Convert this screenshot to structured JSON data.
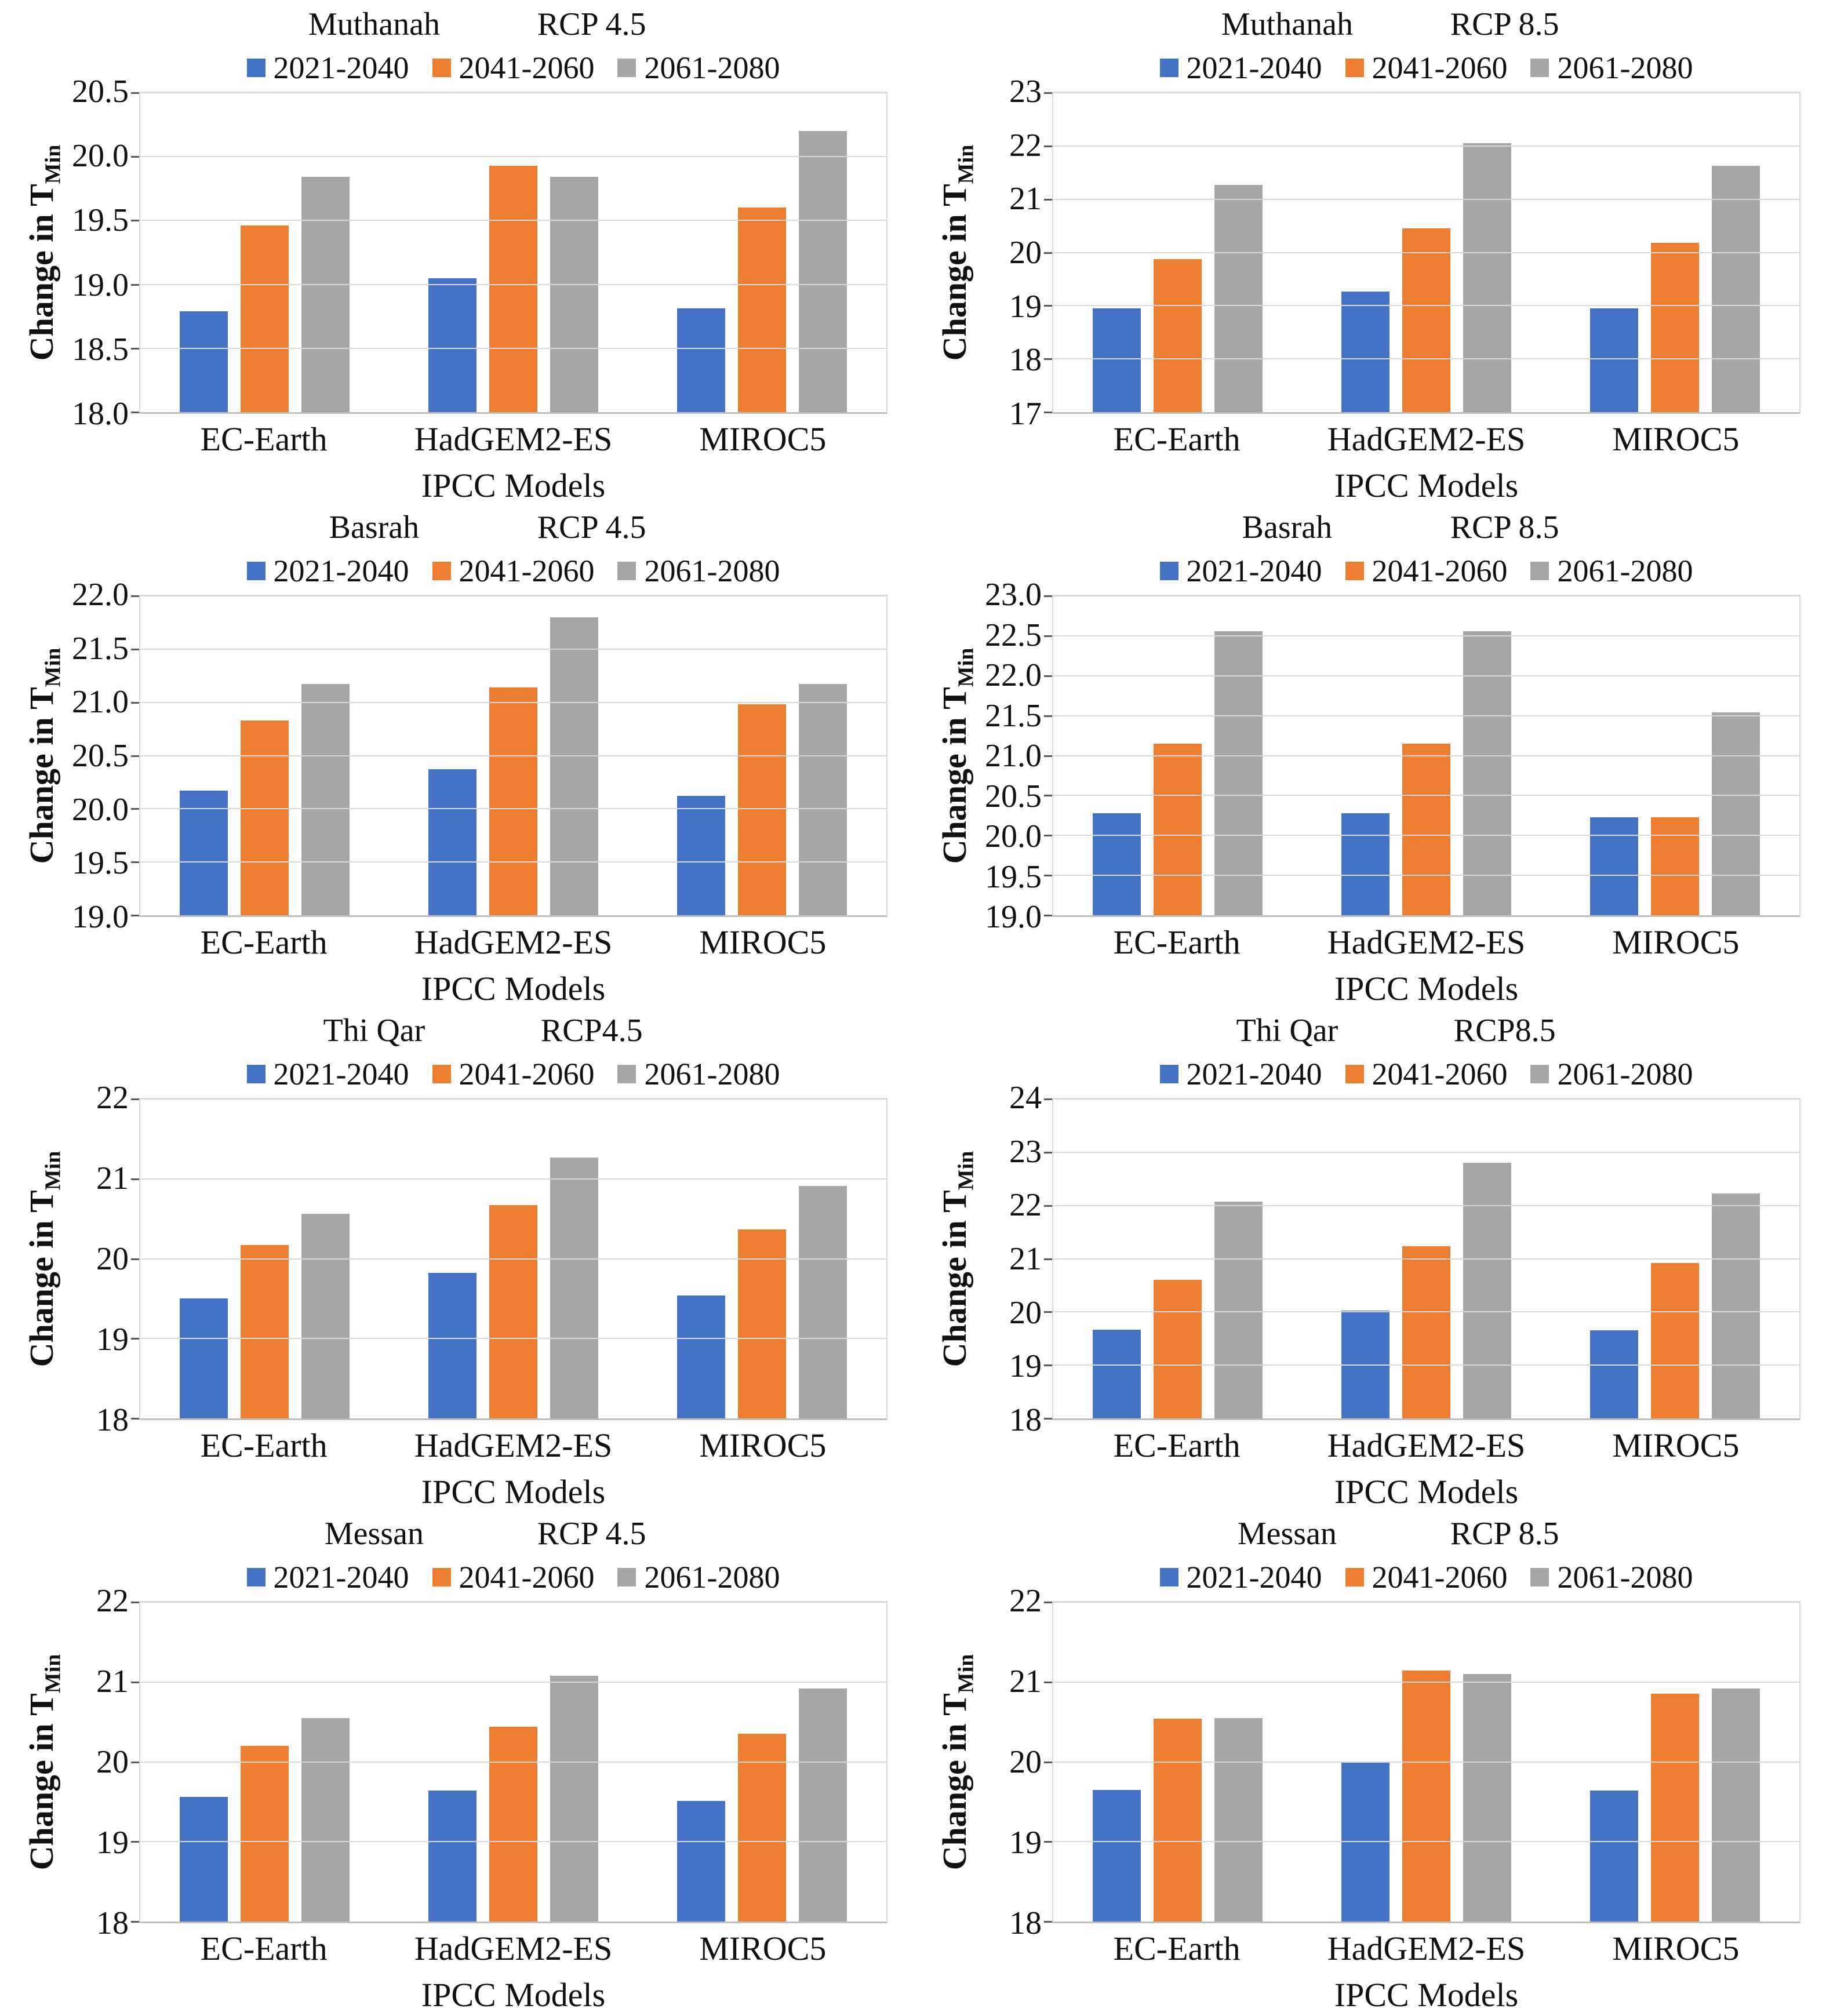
{
  "colors": {
    "series": [
      "#4472C4",
      "#ED7D31",
      "#A6A6A6"
    ],
    "gridline": "#D9D9D9",
    "axis_line": "#BFBFBF",
    "text": "#111111"
  },
  "legend": [
    "2021-2040",
    "2041-2060",
    "2061-2080"
  ],
  "chart_data": [
    {
      "type": "bar",
      "station": "Muthanah",
      "scenario": "RCP 4.5",
      "ylabel": "Change in T",
      "ylabel_sub": "Min",
      "xlabel": "IPCC Models",
      "categories": [
        "EC-Earth",
        "HadGEM2-ES",
        "MIROC5"
      ],
      "ylim": [
        18.0,
        20.5
      ],
      "yticks": [
        "18.0",
        "18.5",
        "19.0",
        "19.5",
        "20.0",
        "20.5"
      ],
      "grid": true,
      "legend_position": "top",
      "series": [
        {
          "name": "2021-2040",
          "values": [
            18.79,
            19.05,
            18.81
          ]
        },
        {
          "name": "2041-2060",
          "values": [
            19.46,
            19.93,
            19.6
          ]
        },
        {
          "name": "2061-2080",
          "values": [
            19.84,
            19.84,
            20.2
          ]
        }
      ]
    },
    {
      "type": "bar",
      "station": "Muthanah",
      "scenario": "RCP 8.5",
      "ylabel": "Change in T",
      "ylabel_sub": "Min",
      "xlabel": "IPCC Models",
      "categories": [
        "EC-Earth",
        "HadGEM2-ES",
        "MIROC5"
      ],
      "ylim": [
        17,
        23
      ],
      "yticks": [
        "17",
        "18",
        "19",
        "20",
        "21",
        "22",
        "23"
      ],
      "grid": true,
      "legend_position": "top",
      "series": [
        {
          "name": "2021-2040",
          "values": [
            18.95,
            19.27,
            18.95
          ]
        },
        {
          "name": "2041-2060",
          "values": [
            19.88,
            20.45,
            20.18
          ]
        },
        {
          "name": "2061-2080",
          "values": [
            21.27,
            22.05,
            21.63
          ]
        }
      ]
    },
    {
      "type": "bar",
      "station": "Basrah",
      "scenario": "RCP 4.5",
      "ylabel": "Change in T",
      "ylabel_sub": "Min",
      "xlabel": "IPCC Models",
      "categories": [
        "EC-Earth",
        "HadGEM2-ES",
        "MIROC5"
      ],
      "ylim": [
        19.0,
        22.0
      ],
      "yticks": [
        "19.0",
        "19.5",
        "20.0",
        "20.5",
        "21.0",
        "21.5",
        "22.0"
      ],
      "grid": true,
      "legend_position": "top",
      "series": [
        {
          "name": "2021-2040",
          "values": [
            20.17,
            20.37,
            20.12
          ]
        },
        {
          "name": "2041-2060",
          "values": [
            20.83,
            21.14,
            20.98
          ]
        },
        {
          "name": "2061-2080",
          "values": [
            21.17,
            21.8,
            21.17
          ]
        }
      ]
    },
    {
      "type": "bar",
      "station": "Basrah",
      "scenario": "RCP 8.5",
      "ylabel": "Change in T",
      "ylabel_sub": "Min",
      "xlabel": "IPCC Models",
      "categories": [
        "EC-Earth",
        "HadGEM2-ES",
        "MIROC5"
      ],
      "ylim": [
        19.0,
        23.0
      ],
      "yticks": [
        "19.0",
        "19.5",
        "20.0",
        "20.5",
        "21.0",
        "21.5",
        "22.0",
        "22.5",
        "23.0"
      ],
      "grid": true,
      "legend_position": "top",
      "series": [
        {
          "name": "2021-2040",
          "values": [
            20.28,
            20.28,
            20.23
          ]
        },
        {
          "name": "2041-2060",
          "values": [
            21.15,
            21.15,
            20.23
          ]
        },
        {
          "name": "2061-2080",
          "values": [
            22.56,
            22.56,
            21.54
          ]
        }
      ]
    },
    {
      "type": "bar",
      "station": "Thi Qar",
      "scenario": "RCP4.5",
      "ylabel": "Change in T",
      "ylabel_sub": "Min",
      "xlabel": "IPCC Models",
      "categories": [
        "EC-Earth",
        "HadGEM2-ES",
        "MIROC5"
      ],
      "ylim": [
        18,
        22
      ],
      "yticks": [
        "18",
        "19",
        "20",
        "21",
        "22"
      ],
      "grid": true,
      "legend_position": "top",
      "series": [
        {
          "name": "2021-2040",
          "values": [
            19.5,
            19.82,
            19.54
          ]
        },
        {
          "name": "2041-2060",
          "values": [
            20.17,
            20.67,
            20.37
          ]
        },
        {
          "name": "2061-2080",
          "values": [
            20.56,
            21.27,
            20.91
          ]
        }
      ]
    },
    {
      "type": "bar",
      "station": "Thi Qar",
      "scenario": "RCP8.5",
      "ylabel": "Change in T",
      "ylabel_sub": "Min",
      "xlabel": "IPCC Models",
      "categories": [
        "EC-Earth",
        "HadGEM2-ES",
        "MIROC5"
      ],
      "ylim": [
        18,
        24
      ],
      "yticks": [
        "18",
        "19",
        "20",
        "21",
        "22",
        "23",
        "24"
      ],
      "grid": true,
      "legend_position": "top",
      "series": [
        {
          "name": "2021-2040",
          "values": [
            19.67,
            20.03,
            19.65
          ]
        },
        {
          "name": "2041-2060",
          "values": [
            20.6,
            21.23,
            20.92
          ]
        },
        {
          "name": "2061-2080",
          "values": [
            22.07,
            22.8,
            22.22
          ]
        }
      ]
    },
    {
      "type": "bar",
      "station": "Messan",
      "scenario": "RCP 4.5",
      "ylabel": "Change in T",
      "ylabel_sub": "Min",
      "xlabel": "IPCC Models",
      "categories": [
        "EC-Earth",
        "HadGEM2-ES",
        "MIROC5"
      ],
      "ylim": [
        18,
        22
      ],
      "yticks": [
        "18",
        "19",
        "20",
        "21",
        "22"
      ],
      "grid": true,
      "legend_position": "top",
      "series": [
        {
          "name": "2021-2040",
          "values": [
            19.56,
            19.64,
            19.51
          ]
        },
        {
          "name": "2041-2060",
          "values": [
            20.2,
            20.44,
            20.35
          ]
        },
        {
          "name": "2061-2080",
          "values": [
            20.55,
            21.08,
            20.92
          ]
        }
      ]
    },
    {
      "type": "bar",
      "station": "Messan",
      "scenario": "RCP 8.5",
      "ylabel": "Change in T",
      "ylabel_sub": "Min",
      "xlabel": "IPCC Models",
      "categories": [
        "EC-Earth",
        "HadGEM2-ES",
        "MIROC5"
      ],
      "ylim": [
        18,
        22
      ],
      "yticks": [
        "18",
        "19",
        "20",
        "21",
        "22"
      ],
      "grid": true,
      "legend_position": "top",
      "series": [
        {
          "name": "2021-2040",
          "values": [
            19.65,
            19.99,
            19.64
          ]
        },
        {
          "name": "2041-2060",
          "values": [
            20.54,
            21.14,
            20.85
          ]
        },
        {
          "name": "2061-2080",
          "values": [
            20.55,
            21.1,
            20.92
          ]
        }
      ]
    }
  ]
}
